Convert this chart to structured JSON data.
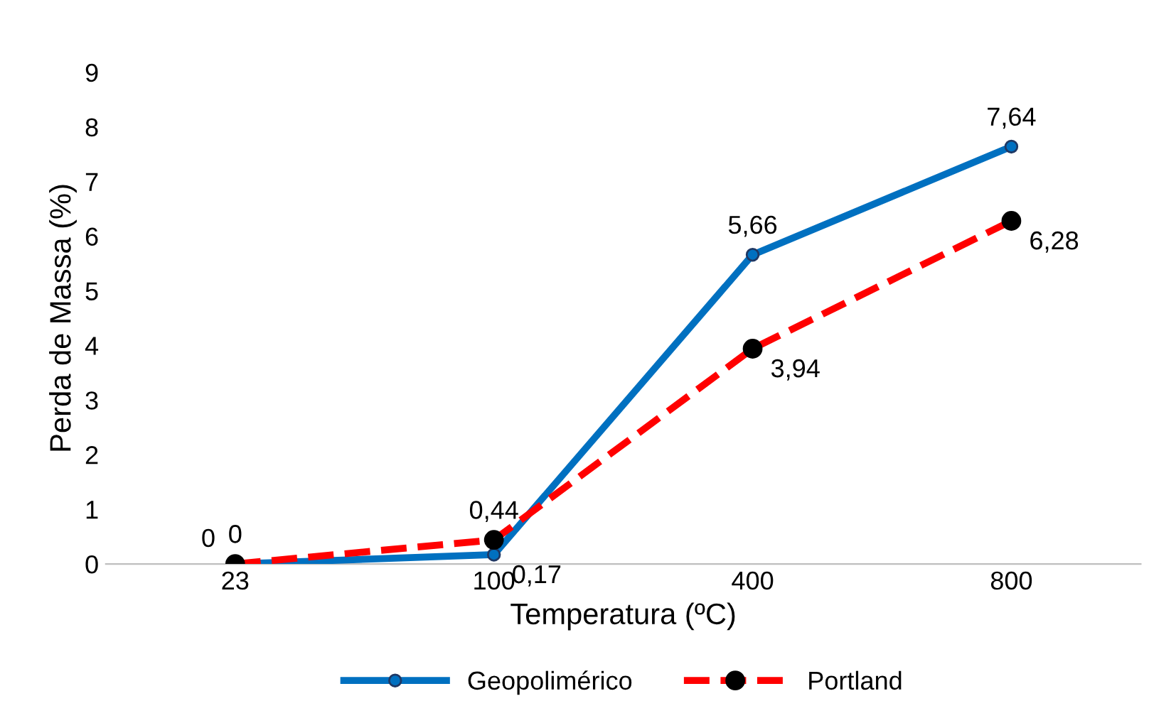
{
  "chart_data": {
    "type": "line",
    "xlabel": "Temperatura (ºC)",
    "ylabel": "Perda de Massa (%)",
    "categories": [
      "23",
      "100",
      "400",
      "800"
    ],
    "series": [
      {
        "name": "Geopolimérico",
        "color": "#0070c0",
        "values": [
          0,
          0.17,
          5.66,
          7.64
        ],
        "value_labels": [
          "0",
          "0,17",
          "5,66",
          "7,64"
        ],
        "marker": "circle",
        "line_style": "solid"
      },
      {
        "name": "Portland",
        "color": "#ff0000",
        "values": [
          0,
          0.44,
          3.94,
          6.28
        ],
        "value_labels": [
          "0",
          "0,44",
          "3,94",
          "6,28"
        ],
        "marker": "circle",
        "line_style": "dashed"
      }
    ],
    "ylim": [
      0,
      9
    ],
    "yticks": [
      0,
      1,
      2,
      3,
      4,
      5,
      6,
      7,
      8,
      9
    ],
    "grid": false,
    "legend": "bottom"
  }
}
